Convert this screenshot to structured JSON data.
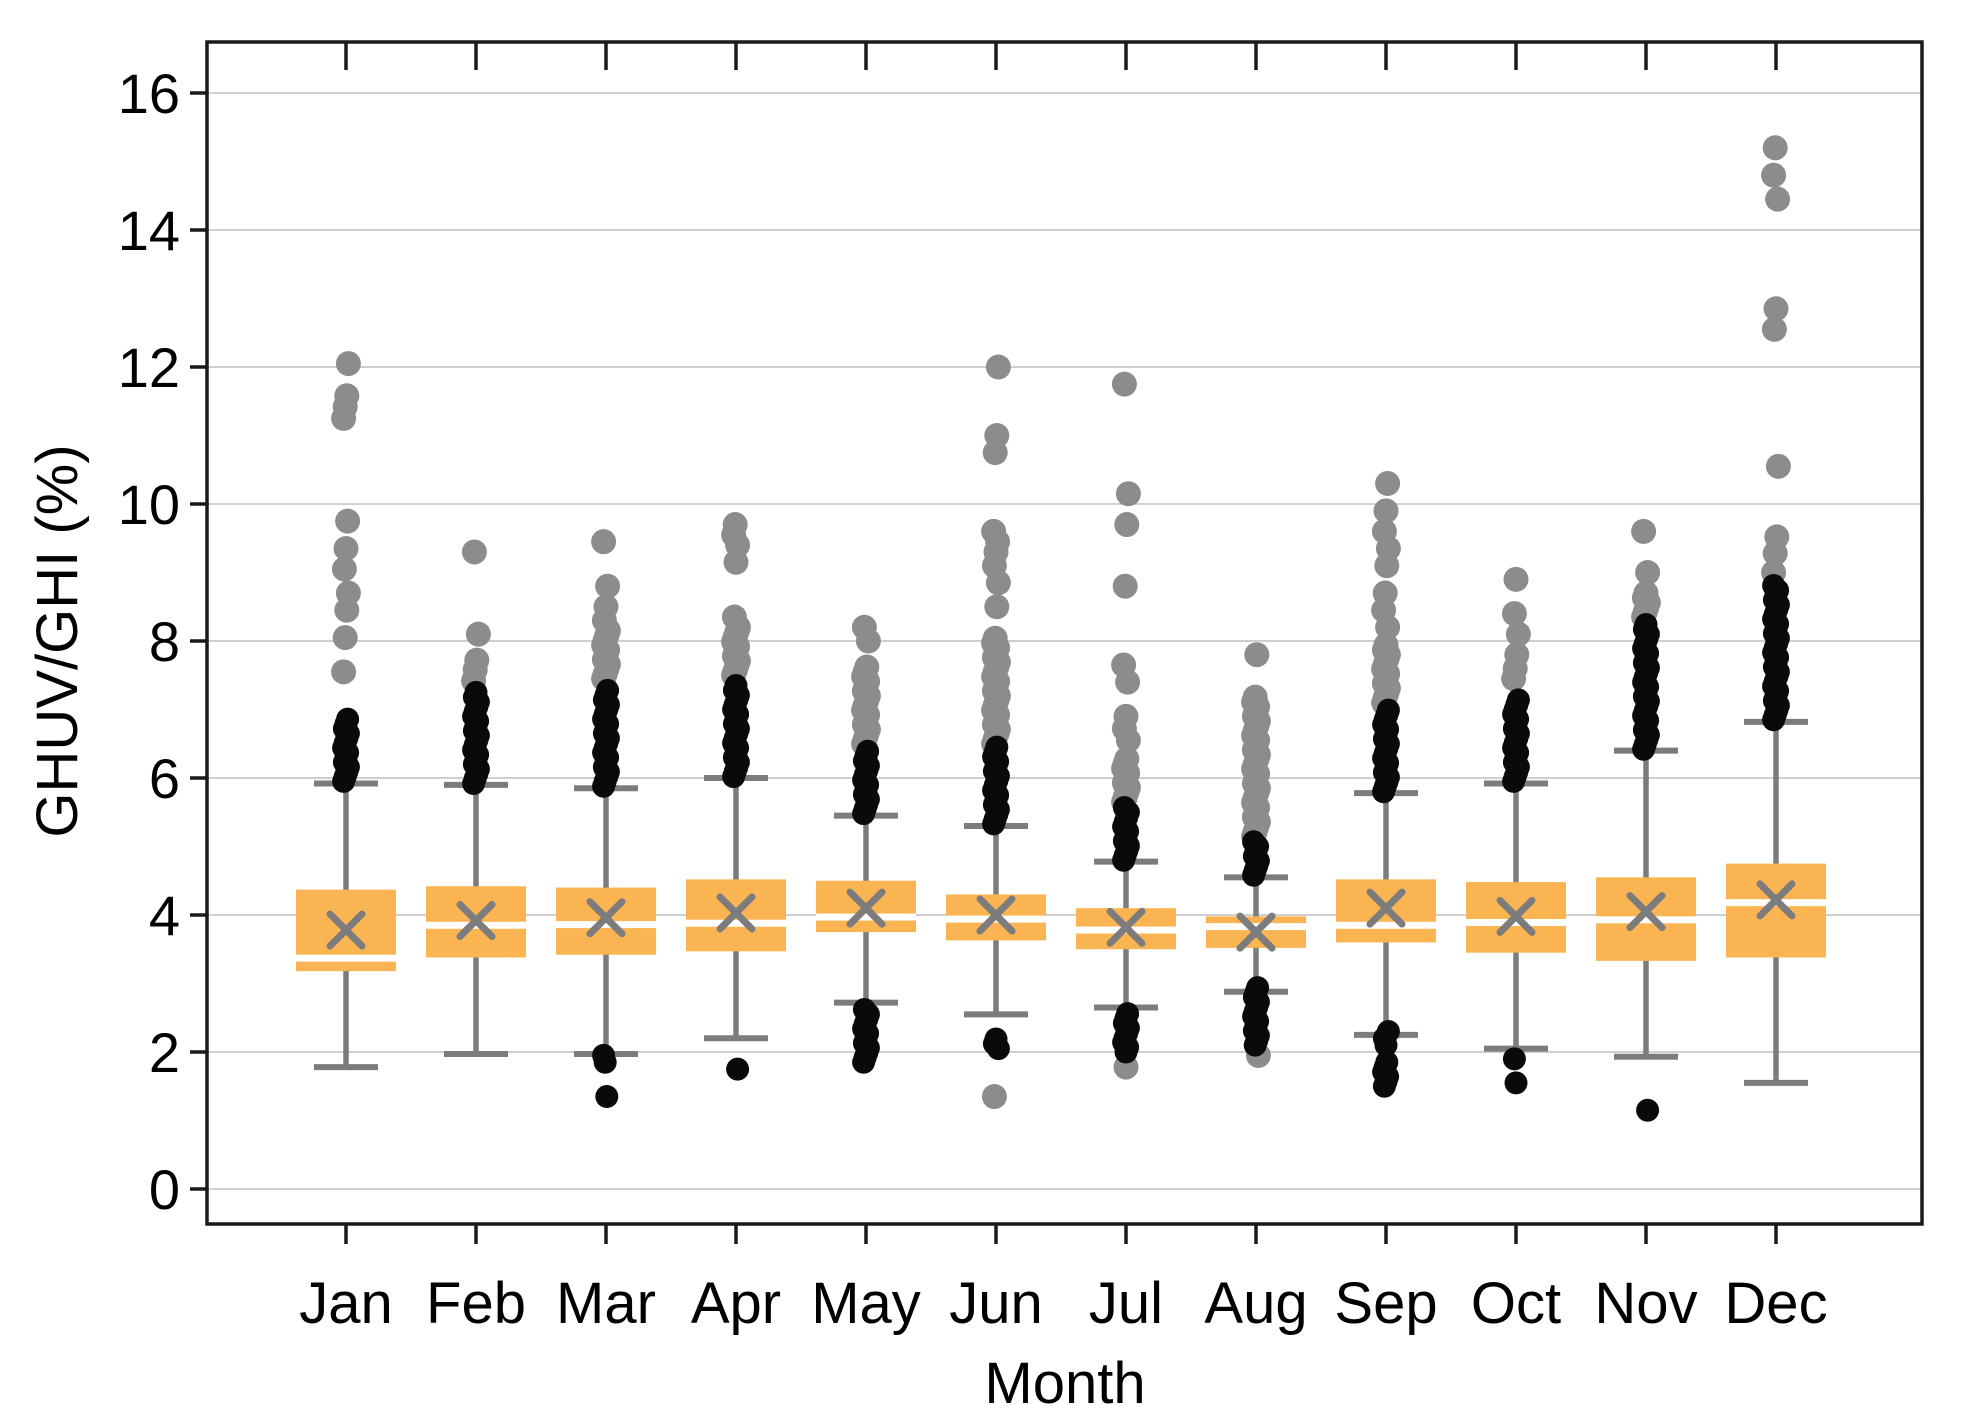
{
  "chart_data": {
    "type": "box",
    "title": "",
    "xlabel": "Month",
    "ylabel": "GHUV/GHI (%)",
    "legend": null,
    "grid": true,
    "categories": [
      "Jan",
      "Feb",
      "Mar",
      "Apr",
      "May",
      "Jun",
      "Jul",
      "Aug",
      "Sep",
      "Oct",
      "Nov",
      "Dec"
    ],
    "y_axis": {
      "min": 0,
      "max": 16,
      "tick_step": 2,
      "ticks": [
        0,
        2,
        4,
        6,
        8,
        10,
        12,
        14,
        16
      ]
    },
    "colors": {
      "box_fill": "#FAB452",
      "median_line": "#FFFFFF",
      "whisker": "#7C7C7C",
      "mean_marker": "#7C7C7C",
      "near_outlier": "#0A0A0A",
      "far_outlier": "#8C8C8C",
      "gridline": "#CFCFCF",
      "frame": "#1A1A1A",
      "text": "#000000"
    },
    "series": [
      {
        "month": "Jan",
        "whisker_low": 1.78,
        "q1": 3.18,
        "median": 3.37,
        "mean": 3.78,
        "q3": 4.37,
        "whisker_high": 5.92,
        "black": {
          "range_high": [
            5.95,
            6.9
          ],
          "points_high": [],
          "range_low": null,
          "points_low": []
        },
        "gray": {
          "range_high": null,
          "points_high": [
            7.55,
            8.05,
            8.45,
            8.7,
            9.05,
            9.35,
            9.75,
            11.25,
            11.42,
            11.58,
            12.05
          ],
          "range_low": null,
          "points_low": []
        }
      },
      {
        "month": "Feb",
        "whisker_low": 1.97,
        "q1": 3.38,
        "median": 3.85,
        "mean": 3.92,
        "q3": 4.42,
        "whisker_high": 5.9,
        "black": {
          "range_high": [
            5.92,
            7.3
          ],
          "points_high": [],
          "range_low": null,
          "points_low": []
        },
        "gray": {
          "range_high": null,
          "points_high": [
            7.42,
            7.58,
            7.72,
            8.1,
            9.3
          ],
          "range_low": null,
          "points_low": []
        }
      },
      {
        "month": "Mar",
        "whisker_low": 1.97,
        "q1": 3.42,
        "median": 3.86,
        "mean": 3.96,
        "q3": 4.4,
        "whisker_high": 5.85,
        "black": {
          "range_high": [
            5.88,
            7.3
          ],
          "points_high": [],
          "range_low": null,
          "points_low": [
            1.95,
            1.85,
            1.35
          ]
        },
        "gray": {
          "range_high": [
            7.45,
            8.15
          ],
          "points_high": [
            8.3,
            8.5,
            8.8,
            9.45
          ],
          "range_low": null,
          "points_low": []
        }
      },
      {
        "month": "Apr",
        "whisker_low": 2.2,
        "q1": 3.47,
        "median": 3.88,
        "mean": 4.03,
        "q3": 4.52,
        "whisker_high": 6.0,
        "black": {
          "range_high": [
            6.02,
            7.35
          ],
          "points_high": [],
          "range_low": null,
          "points_low": [
            1.75
          ]
        },
        "gray": {
          "range_high": [
            7.5,
            8.2
          ],
          "points_high": [
            8.35,
            9.15,
            9.4,
            9.55,
            9.7
          ],
          "range_low": null,
          "points_low": []
        }
      },
      {
        "month": "May",
        "whisker_low": 2.72,
        "q1": 3.75,
        "median": 3.97,
        "mean": 4.1,
        "q3": 4.5,
        "whisker_high": 5.45,
        "black": {
          "range_high": [
            5.48,
            6.45
          ],
          "points_high": [],
          "range_low": [
            1.85,
            2.65
          ],
          "points_low": []
        },
        "gray": {
          "range_high": [
            6.5,
            7.65
          ],
          "points_high": [
            8.0,
            8.2
          ],
          "range_low": null,
          "points_low": []
        }
      },
      {
        "month": "Jun",
        "whisker_low": 2.55,
        "q1": 3.63,
        "median": 3.94,
        "mean": 4.0,
        "q3": 4.3,
        "whisker_high": 5.3,
        "black": {
          "range_high": [
            5.33,
            6.45
          ],
          "points_high": [],
          "range_low": [
            2.05,
            2.25
          ],
          "points_low": []
        },
        "gray": {
          "range_high": [
            6.5,
            8.1
          ],
          "points_high": [
            8.5,
            8.85,
            9.1,
            9.3,
            9.45,
            9.6,
            10.75,
            11.0,
            12.0
          ],
          "range_low": null,
          "points_low": [
            1.35
          ]
        }
      },
      {
        "month": "Jul",
        "whisker_low": 2.65,
        "q1": 3.5,
        "median": 3.78,
        "mean": 3.82,
        "q3": 4.1,
        "whisker_high": 4.78,
        "black": {
          "range_high": [
            4.8,
            5.6
          ],
          "points_high": [],
          "range_low": [
            2.0,
            2.6
          ],
          "points_low": []
        },
        "gray": {
          "range_high": [
            5.65,
            6.3
          ],
          "points_high": [
            6.55,
            6.72,
            6.9,
            7.4,
            7.65,
            8.8,
            9.7,
            10.15,
            11.75
          ],
          "range_low": null,
          "points_low": [
            1.78
          ]
        }
      },
      {
        "month": "Aug",
        "whisker_low": 2.88,
        "q1": 3.52,
        "median": 3.83,
        "mean": 3.75,
        "q3": 3.98,
        "whisker_high": 4.55,
        "black": {
          "range_high": [
            4.58,
            5.1
          ],
          "points_high": [],
          "range_low": [
            2.1,
            2.95
          ],
          "points_low": []
        },
        "gray": {
          "range_high": [
            5.15,
            7.2
          ],
          "points_high": [
            7.8
          ],
          "range_low": null,
          "points_low": [
            1.95
          ]
        }
      },
      {
        "month": "Sep",
        "whisker_low": 2.25,
        "q1": 3.6,
        "median": 3.85,
        "mean": 4.1,
        "q3": 4.52,
        "whisker_high": 5.78,
        "black": {
          "range_high": [
            5.8,
            7.05
          ],
          "points_high": [],
          "range_low": [
            1.5,
            1.9
          ],
          "points_low": [
            2.3,
            2.2,
            2.1
          ]
        },
        "gray": {
          "range_high": [
            7.1,
            8.0
          ],
          "points_high": [
            8.2,
            8.45,
            8.7,
            9.1,
            9.35,
            9.6,
            9.9,
            10.3
          ],
          "range_low": null,
          "points_low": []
        }
      },
      {
        "month": "Oct",
        "whisker_low": 2.05,
        "q1": 3.45,
        "median": 3.89,
        "mean": 3.98,
        "q3": 4.48,
        "whisker_high": 5.92,
        "black": {
          "range_high": [
            5.95,
            7.2
          ],
          "points_high": [],
          "range_low": null,
          "points_low": [
            1.9,
            1.55
          ]
        },
        "gray": {
          "range_high": null,
          "points_high": [
            7.45,
            7.6,
            7.8,
            8.1,
            8.4,
            8.9
          ],
          "range_low": null,
          "points_low": []
        }
      },
      {
        "month": "Nov",
        "whisker_low": 1.93,
        "q1": 3.33,
        "median": 3.93,
        "mean": 4.05,
        "q3": 4.55,
        "whisker_high": 6.4,
        "black": {
          "range_high": [
            6.42,
            8.3
          ],
          "points_high": [],
          "range_low": null,
          "points_low": [
            1.15
          ]
        },
        "gray": {
          "range_high": [
            8.35,
            8.75
          ],
          "points_high": [
            9.0,
            9.6
          ],
          "range_low": null,
          "points_low": []
        }
      },
      {
        "month": "Dec",
        "whisker_low": 1.55,
        "q1": 3.38,
        "median": 4.18,
        "mean": 4.22,
        "q3": 4.75,
        "whisker_high": 6.82,
        "black": {
          "range_high": [
            6.85,
            8.85
          ],
          "points_high": [],
          "range_low": null,
          "points_low": []
        },
        "gray": {
          "range_high": null,
          "points_high": [
            9.0,
            9.28,
            9.52,
            10.55,
            12.55,
            12.85,
            14.45,
            14.8,
            15.2
          ],
          "range_low": null,
          "points_low": []
        }
      }
    ]
  }
}
